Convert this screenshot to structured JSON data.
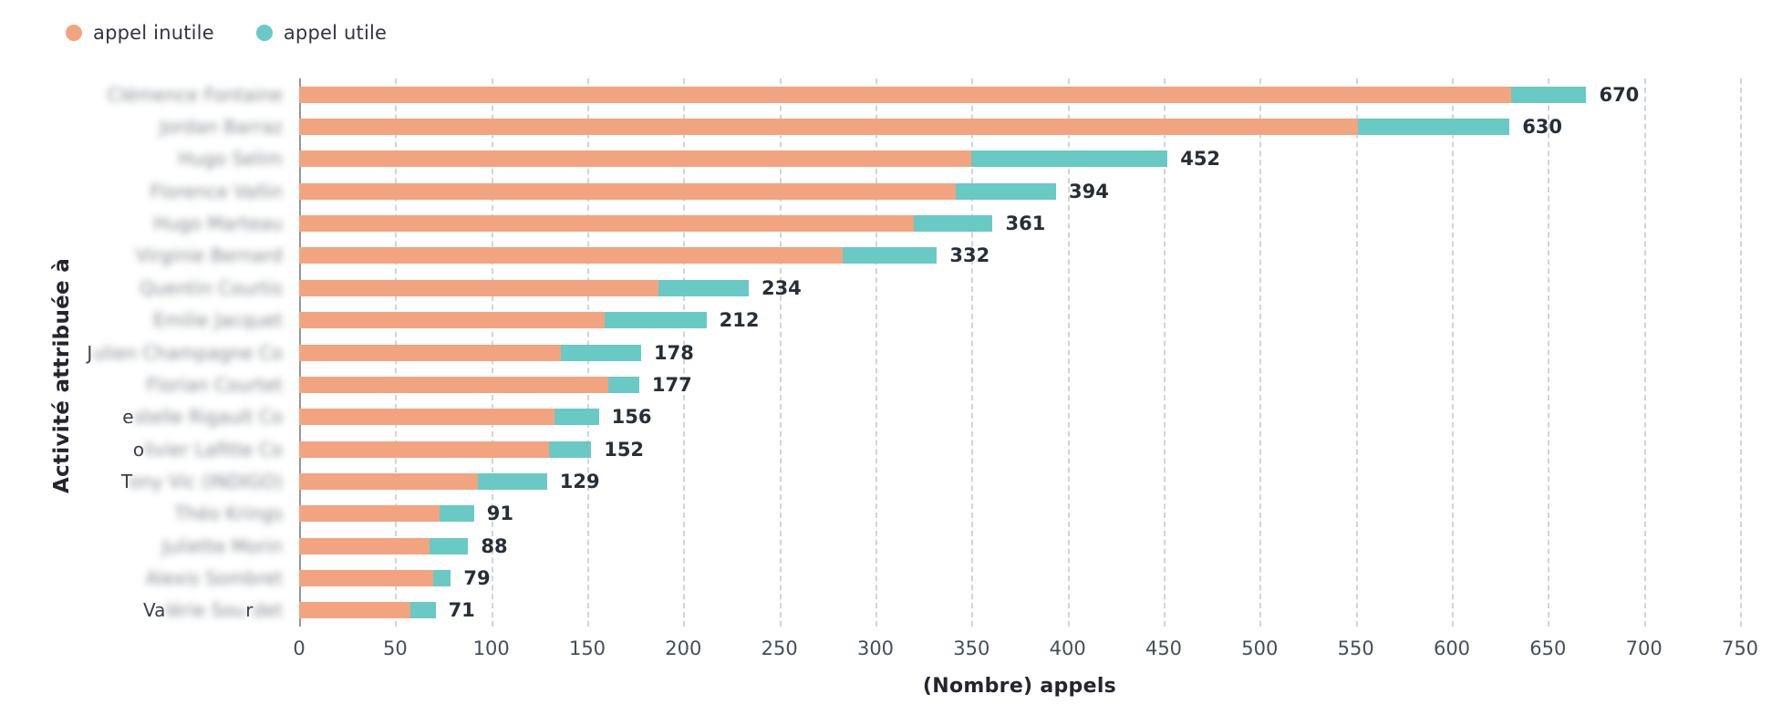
{
  "chart_data": {
    "type": "bar",
    "orientation": "horizontal",
    "stacked": true,
    "title": "",
    "xlabel": "(Nombre) appels",
    "ylabel": "Activité attribuée à",
    "xlim": [
      0,
      750
    ],
    "xticks": [
      0,
      50,
      100,
      150,
      200,
      250,
      300,
      350,
      400,
      450,
      500,
      550,
      600,
      650,
      700,
      750
    ],
    "grid": "vertical-dashed",
    "legend_position": "top-left",
    "series": [
      {
        "name": "appel inutile",
        "color": "#f2a480",
        "values": [
          631,
          551,
          350,
          342,
          320,
          283,
          187,
          159,
          136,
          161,
          133,
          130,
          93,
          73,
          68,
          70,
          58
        ]
      },
      {
        "name": "appel utile",
        "color": "#69c9c4",
        "values": [
          39,
          79,
          102,
          52,
          41,
          49,
          47,
          53,
          42,
          16,
          23,
          22,
          36,
          18,
          20,
          9,
          13
        ]
      }
    ],
    "totals": [
      670,
      630,
      452,
      394,
      361,
      332,
      234,
      212,
      178,
      177,
      156,
      152,
      129,
      91,
      88,
      79,
      71
    ],
    "categories_redacted": true,
    "categories": [
      [
        {
          "t": "Clémence Fontaine",
          "b": true
        }
      ],
      [
        {
          "t": "Jordan Barraz",
          "b": true
        }
      ],
      [
        {
          "t": "Hugo Selim",
          "b": true
        }
      ],
      [
        {
          "t": "Florence Vallin",
          "b": true
        }
      ],
      [
        {
          "t": "Hugo Marteau",
          "b": true
        }
      ],
      [
        {
          "t": "Virginie Bernard",
          "b": true
        }
      ],
      [
        {
          "t": "Quentin Courtis",
          "b": true
        }
      ],
      [
        {
          "t": "Emilie Jacquet",
          "b": true
        }
      ],
      [
        {
          "t": "J",
          "b": false
        },
        {
          "t": "ulien Champagne Co",
          "b": true
        }
      ],
      [
        {
          "t": "Florian Courtet",
          "b": true
        }
      ],
      [
        {
          "t": "e",
          "b": false
        },
        {
          "t": "stelle Rigault Co",
          "b": true
        }
      ],
      [
        {
          "t": "o",
          "b": false
        },
        {
          "t": "livier Lafitte Co",
          "b": true
        }
      ],
      [
        {
          "t": "T",
          "b": false
        },
        {
          "t": "ony Vic (INDIGO)",
          "b": true
        }
      ],
      [
        {
          "t": "Théo Krings",
          "b": true
        }
      ],
      [
        {
          "t": "Juliette Morin",
          "b": true
        }
      ],
      [
        {
          "t": "Alexis Sombret",
          "b": true
        }
      ],
      [
        {
          "t": "Va",
          "b": false
        },
        {
          "t": "lérie Sou",
          "b": true
        },
        {
          "t": "r",
          "b": false
        },
        {
          "t": "det",
          "b": true
        }
      ]
    ]
  },
  "colors": {
    "background": "#ffffff",
    "gridline": "#cfd5db",
    "zero_axis": "#8e98a1",
    "tick_text": "#454e58",
    "total_text": "#272e36",
    "axis_title_text": "#25252e"
  }
}
